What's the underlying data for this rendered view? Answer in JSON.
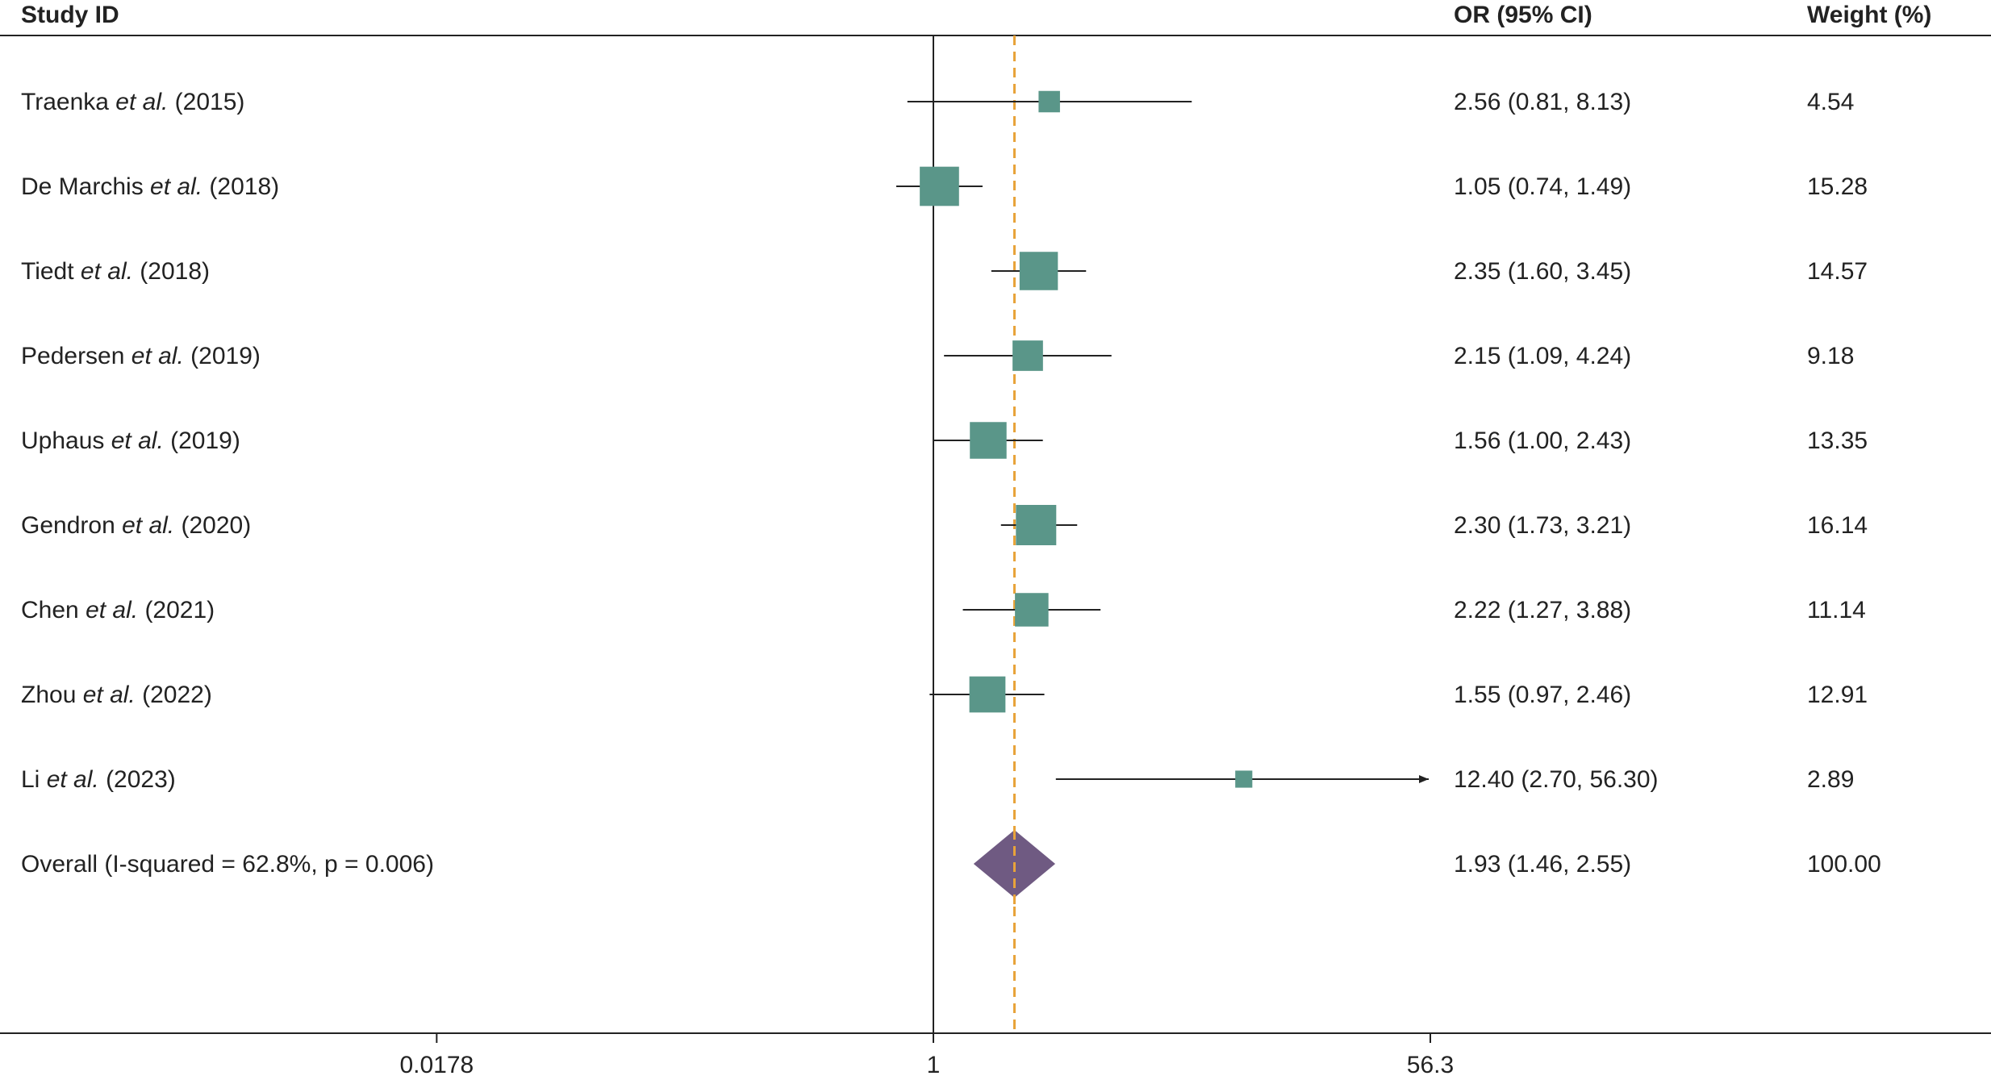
{
  "headers": {
    "study": "Study ID",
    "or": "OR (95% CI)",
    "weight": "Weight (%)"
  },
  "chart_data": {
    "type": "forest",
    "x_scale": "log",
    "xlim": [
      0.0178,
      56.3
    ],
    "x_ticks": [
      0.0178,
      1,
      56.3
    ],
    "x_tick_labels": [
      "0.0178",
      "1",
      "56.3"
    ],
    "null_line": 1,
    "overall_line": 1.93,
    "studies": [
      {
        "name": "Traenka",
        "etal": "et al.",
        "year": "(2015)",
        "or": 2.56,
        "lo": 0.81,
        "hi": 8.13,
        "weight": 4.54,
        "ci_text": "2.56 (0.81, 8.13)",
        "weight_text": "4.54"
      },
      {
        "name": "De Marchis",
        "etal": "et al.",
        "year": "(2018)",
        "or": 1.05,
        "lo": 0.74,
        "hi": 1.49,
        "weight": 15.28,
        "ci_text": "1.05 (0.74, 1.49)",
        "weight_text": "15.28"
      },
      {
        "name": "Tiedt",
        "etal": "et al.",
        "year": "(2018)",
        "or": 2.35,
        "lo": 1.6,
        "hi": 3.45,
        "weight": 14.57,
        "ci_text": "2.35 (1.60, 3.45)",
        "weight_text": "14.57"
      },
      {
        "name": "Pedersen",
        "etal": "et al.",
        "year": "(2019)",
        "or": 2.15,
        "lo": 1.09,
        "hi": 4.24,
        "weight": 9.18,
        "ci_text": "2.15 (1.09, 4.24)",
        "weight_text": "9.18"
      },
      {
        "name": "Uphaus",
        "etal": "et al.",
        "year": "(2019)",
        "or": 1.56,
        "lo": 1.0,
        "hi": 2.43,
        "weight": 13.35,
        "ci_text": "1.56 (1.00, 2.43)",
        "weight_text": "13.35"
      },
      {
        "name": "Gendron",
        "etal": "et al.",
        "year": "(2020)",
        "or": 2.3,
        "lo": 1.73,
        "hi": 3.21,
        "weight": 16.14,
        "ci_text": "2.30 (1.73, 3.21)",
        "weight_text": "16.14"
      },
      {
        "name": "Chen",
        "etal": "et al.",
        "year": "(2021)",
        "or": 2.22,
        "lo": 1.27,
        "hi": 3.88,
        "weight": 11.14,
        "ci_text": "2.22 (1.27, 3.88)",
        "weight_text": "11.14"
      },
      {
        "name": "Zhou",
        "etal": "et al.",
        "year": "(2022)",
        "or": 1.55,
        "lo": 0.97,
        "hi": 2.46,
        "weight": 12.91,
        "ci_text": "1.55 (0.97, 2.46)",
        "weight_text": "12.91"
      },
      {
        "name": "Li",
        "etal": "et al.",
        "year": "(2023)",
        "or": 12.4,
        "lo": 2.7,
        "hi": 56.3,
        "weight": 2.89,
        "ci_text": "12.40 (2.70, 56.30)",
        "weight_text": "2.89",
        "arrow_right": true
      }
    ],
    "overall": {
      "label": "Overall (I-squared = 62.8%, p = 0.006)",
      "or": 1.93,
      "lo": 1.46,
      "hi": 2.55,
      "ci_text": "1.93 (1.46, 2.55)",
      "weight_text": "100.00"
    },
    "colors": {
      "study_box": "#5a9689",
      "overall_diamond": "#6f5a82",
      "overall_line": "#e8a33a",
      "lines": "#222222"
    }
  }
}
